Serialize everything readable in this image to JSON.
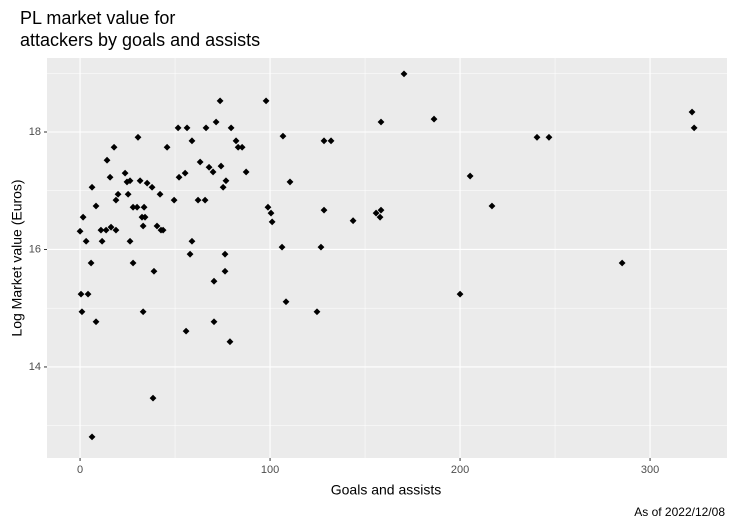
{
  "chart_data": {
    "type": "scatter",
    "title": "PL market value for\nattackers by goals and assists",
    "x_label": "Goals and assists",
    "y_label": "Log Market value (Euros)",
    "caption": "As of 2022/12/08",
    "color": "#000000",
    "grid": true,
    "xlim": [
      -17.4,
      340.5
    ],
    "xticks": [
      0,
      100,
      200,
      300
    ],
    "ylim": [
      12.45,
      19.26
    ],
    "yticks": [
      14,
      16,
      18
    ],
    "x": [
      0,
      1.6,
      0.5,
      4.2,
      1,
      3.2,
      5.8,
      6.3,
      8.4,
      8.4,
      6.3,
      11,
      11.6,
      13.7,
      14.2,
      15.8,
      16.3,
      17.9,
      18.9,
      18.9,
      20,
      23.7,
      24.7,
      26.3,
      25.3,
      26.3,
      27.9,
      27.9,
      30,
      30.5,
      31.6,
      32.6,
      33.2,
      34.2,
      33.7,
      33.2,
      35.3,
      37.9,
      38.9,
      38.4,
      40.5,
      42.6,
      42.1,
      43.7,
      45.8,
      49.5,
      51.6,
      52.1,
      55.3,
      56.3,
      55.8,
      57.9,
      58.9,
      58.9,
      63.2,
      62.1,
      65.8,
      66.3,
      67.9,
      70,
      70.5,
      70.5,
      71.6,
      73.7,
      74.2,
      75.3,
      76.3,
      76.3,
      76.8,
      78.9,
      79.5,
      82.1,
      83.2,
      85.3,
      87.4,
      97.9,
      98.9,
      100.5,
      101.1,
      106.3,
      106.8,
      108.4,
      110.5,
      124.7,
      126.8,
      128.4,
      128.4,
      132.1,
      143.7,
      155.8,
      157.9,
      158.4,
      158.4,
      170.5,
      186.3,
      200,
      205.3,
      216.8,
      240.5,
      246.8,
      285.3,
      322.1,
      323.2
    ],
    "y": [
      16.31,
      16.55,
      15.24,
      15.24,
      14.94,
      16.14,
      15.77,
      17.06,
      16.74,
      14.77,
      12.81,
      16.33,
      16.14,
      16.33,
      17.52,
      17.23,
      16.38,
      17.74,
      16.84,
      16.33,
      16.94,
      17.3,
      17.15,
      17.17,
      16.94,
      16.14,
      15.77,
      16.72,
      16.72,
      17.91,
      17.17,
      16.55,
      16.4,
      16.55,
      16.72,
      14.94,
      17.13,
      17.06,
      15.63,
      13.47,
      16.4,
      16.33,
      16.94,
      16.33,
      17.74,
      16.84,
      18.07,
      17.23,
      17.3,
      18.07,
      14.61,
      15.92,
      16.14,
      17.85,
      17.49,
      16.84,
      16.84,
      18.07,
      17.4,
      17.32,
      15.46,
      14.77,
      18.17,
      18.53,
      17.42,
      17.06,
      15.92,
      15.63,
      17.17,
      14.43,
      18.07,
      17.85,
      17.74,
      17.74,
      17.32,
      18.53,
      16.72,
      16.62,
      16.47,
      16.04,
      17.93,
      15.11,
      17.15,
      14.94,
      16.04,
      16.67,
      17.85,
      17.85,
      16.49,
      16.62,
      16.55,
      16.67,
      18.17,
      18.99,
      18.22,
      15.24,
      17.25,
      16.74,
      17.91,
      17.91,
      15.77,
      18.34,
      18.07
    ]
  }
}
